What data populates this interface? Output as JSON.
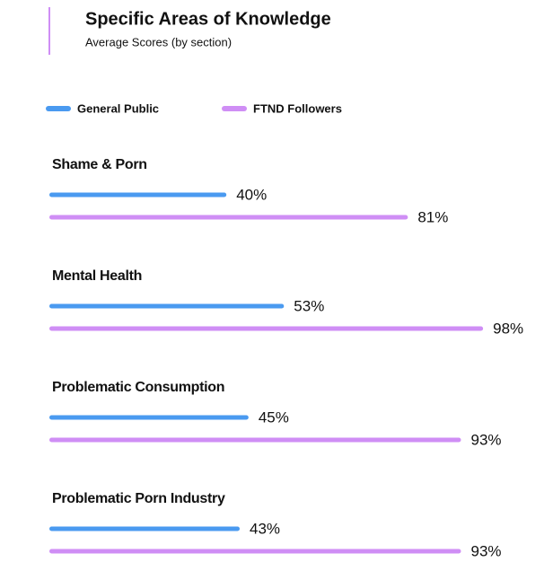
{
  "chart_data": {
    "type": "bar",
    "orientation": "horizontal",
    "title": "Specific Areas of Knowledge",
    "subtitle": "Average Scores (by section)",
    "categories": [
      "Shame & Porn",
      "Mental Health",
      "Problematic Consumption",
      "Problematic Porn Industry"
    ],
    "xlim": [
      0,
      100
    ],
    "series": [
      {
        "name": "General Public",
        "color": "#4a9af0",
        "values": [
          40,
          53,
          45,
          43
        ],
        "value_labels": [
          "40%",
          "53%",
          "45%",
          "43%"
        ]
      },
      {
        "name": "FTND Followers",
        "color": "#cf8ef5",
        "values": [
          81,
          98,
          93,
          93
        ],
        "value_labels": [
          "81%",
          "98%",
          "93%",
          "93%"
        ]
      }
    ]
  }
}
